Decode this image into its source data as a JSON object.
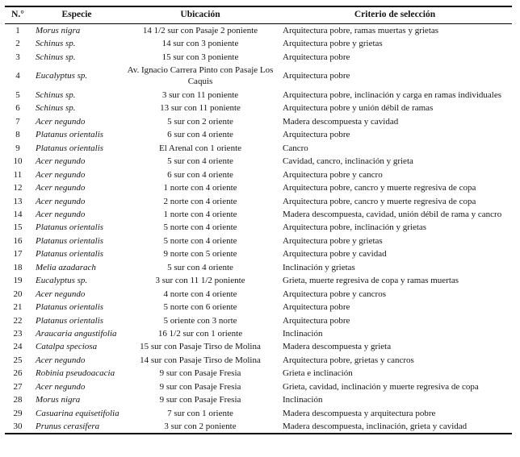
{
  "table": {
    "headers": [
      "N.°",
      "Especie",
      "Ubicación",
      "Criterio de selección"
    ],
    "rows": [
      {
        "n": "1",
        "especie": "Morus nigra",
        "ubicacion": "14 1/2 sur con Pasaje 2 poniente",
        "criterio": "Arquitectura pobre, ramas muertas y grietas"
      },
      {
        "n": "2",
        "especie": "Schinus sp.",
        "ubicacion": "14 sur con 3 poniente",
        "criterio": "Arquitectura pobre y grietas"
      },
      {
        "n": "3",
        "especie": "Schinus sp.",
        "ubicacion": "15 sur con 3 poniente",
        "criterio": "Arquitectura pobre"
      },
      {
        "n": "4",
        "especie": "Eucalyptus sp.",
        "ubicacion": "Av. Ignacio Carrera Pinto con Pasaje Los Caquis",
        "criterio": "Arquitectura pobre"
      },
      {
        "n": "5",
        "especie": "Schinus sp.",
        "ubicacion": "3 sur con 11 poniente",
        "criterio": "Arquitectura pobre, inclinación y carga en ramas individuales"
      },
      {
        "n": "6",
        "especie": "Schinus sp.",
        "ubicacion": "13 sur con 11 poniente",
        "criterio": "Arquitectura pobre y unión débil de ramas"
      },
      {
        "n": "7",
        "especie": "Acer negundo",
        "ubicacion": "5 sur con 2 oriente",
        "criterio": "Madera descompuesta y cavidad"
      },
      {
        "n": "8",
        "especie": "Platanus orientalis",
        "ubicacion": "6 sur con 4 oriente",
        "criterio": "Arquitectura pobre"
      },
      {
        "n": "9",
        "especie": "Platanus orientalis",
        "ubicacion": "El Arenal con 1 oriente",
        "criterio": "Cancro"
      },
      {
        "n": "10",
        "especie": "Acer negundo",
        "ubicacion": "5 sur con 4 oriente",
        "criterio": "Cavidad, cancro, inclinación y grieta"
      },
      {
        "n": "11",
        "especie": "Acer negundo",
        "ubicacion": "6 sur con 4 oriente",
        "criterio": "Arquitectura pobre y cancro"
      },
      {
        "n": "12",
        "especie": "Acer negundo",
        "ubicacion": "1 norte con 4 oriente",
        "criterio": "Arquitectura pobre, cancro y muerte regresiva de copa"
      },
      {
        "n": "13",
        "especie": "Acer negundo",
        "ubicacion": "2 norte con 4 oriente",
        "criterio": "Arquitectura pobre, cancro y muerte regresiva de copa"
      },
      {
        "n": "14",
        "especie": "Acer negundo",
        "ubicacion": "1 norte con 4 oriente",
        "criterio": "Madera descompuesta, cavidad, unión débil de rama y cancro"
      },
      {
        "n": "15",
        "especie": "Platanus orientalis",
        "ubicacion": "5 norte con 4 oriente",
        "criterio": "Arquitectura pobre, inclinación y grietas"
      },
      {
        "n": "16",
        "especie": "Platanus orientalis",
        "ubicacion": "5 norte con 4 oriente",
        "criterio": "Arquitectura pobre y grietas"
      },
      {
        "n": "17",
        "especie": "Platanus orientalis",
        "ubicacion": "9 norte con 5 oriente",
        "criterio": "Arquitectura pobre y cavidad"
      },
      {
        "n": "18",
        "especie": "Melia azadarach",
        "ubicacion": "5 sur con 4 oriente",
        "criterio": "Inclinación y grietas"
      },
      {
        "n": "19",
        "especie": "Eucalyptus sp.",
        "ubicacion": "3 sur con 11 1/2 poniente",
        "criterio": "Grieta, muerte regresiva de copa y ramas muertas"
      },
      {
        "n": "20",
        "especie": "Acer negundo",
        "ubicacion": "4 norte con 4 oriente",
        "criterio": "Arquitectura pobre y cancros"
      },
      {
        "n": "21",
        "especie": "Platanus orientalis",
        "ubicacion": "5 norte con 6 oriente",
        "criterio": "Arquitectura pobre"
      },
      {
        "n": "22",
        "especie": "Platanus orientalis",
        "ubicacion": "5 oriente con 3 norte",
        "criterio": "Arquitectura pobre"
      },
      {
        "n": "23",
        "especie": "Araucaria angustifolia",
        "ubicacion": "16 1/2 sur con 1 oriente",
        "criterio": "Inclinación"
      },
      {
        "n": "24",
        "especie": "Catalpa speciosa",
        "ubicacion": "15 sur con Pasaje Tirso de Molina",
        "criterio": "Madera descompuesta y grieta"
      },
      {
        "n": "25",
        "especie": "Acer negundo",
        "ubicacion": "14 sur con Pasaje Tirso de Molina",
        "criterio": "Arquitectura pobre, grietas y cancros"
      },
      {
        "n": "26",
        "especie": "Robinia pseudoacacia",
        "ubicacion": "9 sur con Pasaje Fresia",
        "criterio": "Grieta e inclinación"
      },
      {
        "n": "27",
        "especie": "Acer negundo",
        "ubicacion": "9 sur con Pasaje Fresia",
        "criterio": "Grieta, cavidad, inclinación y muerte regresiva de copa"
      },
      {
        "n": "28",
        "especie": "Morus nigra",
        "ubicacion": "9 sur con Pasaje Fresia",
        "criterio": "Inclinación"
      },
      {
        "n": "29",
        "especie": "Casuarina equisetifolia",
        "ubicacion": "7 sur con 1 oriente",
        "criterio": "Madera descompuesta y arquitectura pobre"
      },
      {
        "n": "30",
        "especie": "Prunus cerasífera",
        "ubicacion": "3 sur con 2 poniente",
        "criterio": "Madera descompuesta, inclinación, grieta y cavidad"
      }
    ]
  }
}
